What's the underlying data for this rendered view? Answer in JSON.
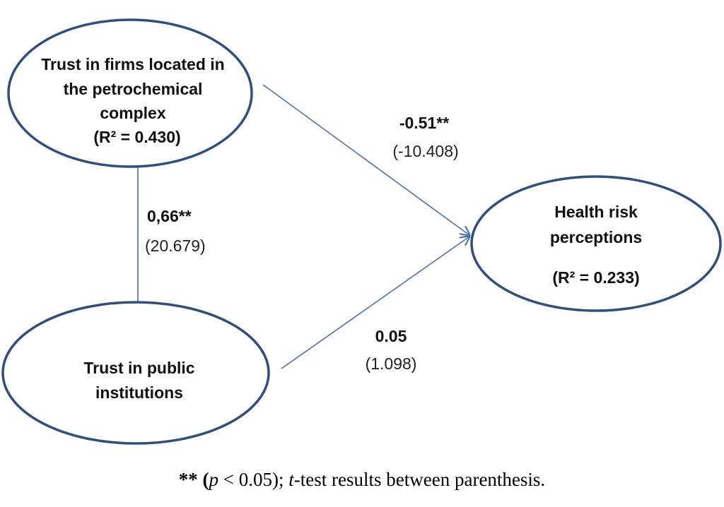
{
  "nodes": [
    {
      "lines": [
        "Trust in firms located in",
        "the petrochemical",
        "complex",
        "(R² = 0.430)"
      ]
    },
    {
      "lines": [
        "Health risk",
        "perceptions",
        "(R² = 0.233)"
      ]
    },
    {
      "lines": [
        "Trust in public",
        "institutions"
      ]
    }
  ],
  "edges": [
    {
      "coefficient": "0,66**",
      "t_value": "(20.679)"
    },
    {
      "coefficient": "-0.51**",
      "t_value": "(-10.408)"
    },
    {
      "coefficient": "0.05",
      "t_value": "(1.098)"
    }
  ],
  "caption": [
    "** (",
    "p",
    " < 0.05); ",
    "t",
    "-test results between parenthesis."
  ]
}
